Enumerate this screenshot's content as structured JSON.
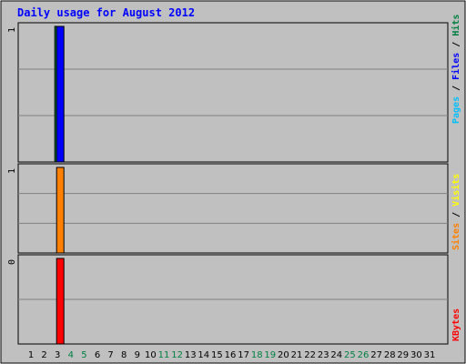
{
  "title": "Daily usage for August 2012",
  "colors": {
    "background": "#c0c0c0",
    "title": "#0000ff",
    "hits": "#008040",
    "files": "#0000ff",
    "pages": "#00c0ff",
    "visits": "#ffff00",
    "sites": "#ff8000",
    "kbytes": "#ff0000",
    "weekday_label": "#000000",
    "weekend_label": "#008040"
  },
  "chart_data": [
    {
      "type": "bar",
      "panel": "hits-files-pages",
      "x": [
        1,
        2,
        3,
        4,
        5,
        6,
        7,
        8,
        9,
        10,
        11,
        12,
        13,
        14,
        15,
        16,
        17,
        18,
        19,
        20,
        21,
        22,
        23,
        24,
        25,
        26,
        27,
        28,
        29,
        30,
        31
      ],
      "weekend_days": [
        4,
        5,
        11,
        12,
        18,
        19,
        25,
        26
      ],
      "y_max_label": "1",
      "series": [
        {
          "name": "Hits",
          "color": "#008040",
          "values": [
            0,
            0,
            1,
            0,
            0,
            0,
            0,
            0,
            0,
            0,
            0,
            0,
            0,
            0,
            0,
            0,
            0,
            0,
            0,
            0,
            0,
            0,
            0,
            0,
            0,
            0,
            0,
            0,
            0,
            0,
            0
          ]
        },
        {
          "name": "Files",
          "color": "#0000ff",
          "values": [
            0,
            0,
            1,
            0,
            0,
            0,
            0,
            0,
            0,
            0,
            0,
            0,
            0,
            0,
            0,
            0,
            0,
            0,
            0,
            0,
            0,
            0,
            0,
            0,
            0,
            0,
            0,
            0,
            0,
            0,
            0
          ]
        },
        {
          "name": "Pages",
          "color": "#00c0ff",
          "values": [
            0,
            0,
            0,
            0,
            0,
            0,
            0,
            0,
            0,
            0,
            0,
            0,
            0,
            0,
            0,
            0,
            0,
            0,
            0,
            0,
            0,
            0,
            0,
            0,
            0,
            0,
            0,
            0,
            0,
            0,
            0
          ]
        }
      ],
      "ylim": [
        0,
        1
      ]
    },
    {
      "type": "bar",
      "panel": "visits-sites",
      "y_max_label": "1",
      "series": [
        {
          "name": "Visits",
          "color": "#ffff00",
          "values": [
            0,
            0,
            0,
            0,
            0,
            0,
            0,
            0,
            0,
            0,
            0,
            0,
            0,
            0,
            0,
            0,
            0,
            0,
            0,
            0,
            0,
            0,
            0,
            0,
            0,
            0,
            0,
            0,
            0,
            0,
            0
          ]
        },
        {
          "name": "Sites",
          "color": "#ff8000",
          "values": [
            0,
            0,
            1,
            0,
            0,
            0,
            0,
            0,
            0,
            0,
            0,
            0,
            0,
            0,
            0,
            0,
            0,
            0,
            0,
            0,
            0,
            0,
            0,
            0,
            0,
            0,
            0,
            0,
            0,
            0,
            0
          ]
        }
      ],
      "ylim": [
        0,
        1
      ]
    },
    {
      "type": "bar",
      "panel": "kbytes",
      "y_max_label": "0",
      "series": [
        {
          "name": "KBytes",
          "color": "#ff0000",
          "values": [
            0,
            0,
            0.4,
            0,
            0,
            0,
            0,
            0,
            0,
            0,
            0,
            0,
            0,
            0,
            0,
            0,
            0,
            0,
            0,
            0,
            0,
            0,
            0,
            0,
            0,
            0,
            0,
            0,
            0,
            0,
            0
          ]
        }
      ],
      "ylim": [
        0,
        0.4
      ]
    }
  ],
  "legend": {
    "top": [
      {
        "text": "Pages",
        "color": "#00c0ff"
      },
      {
        "text": " / ",
        "color": "#000000"
      },
      {
        "text": "Files",
        "color": "#0000ff"
      },
      {
        "text": " / ",
        "color": "#000000"
      },
      {
        "text": "Hits",
        "color": "#008040"
      }
    ],
    "middle": [
      {
        "text": "Sites",
        "color": "#ff8000"
      },
      {
        "text": " / ",
        "color": "#000000"
      },
      {
        "text": "Visits",
        "color": "#ffff00"
      }
    ],
    "bottom": [
      {
        "text": "KBytes",
        "color": "#ff0000"
      }
    ]
  }
}
